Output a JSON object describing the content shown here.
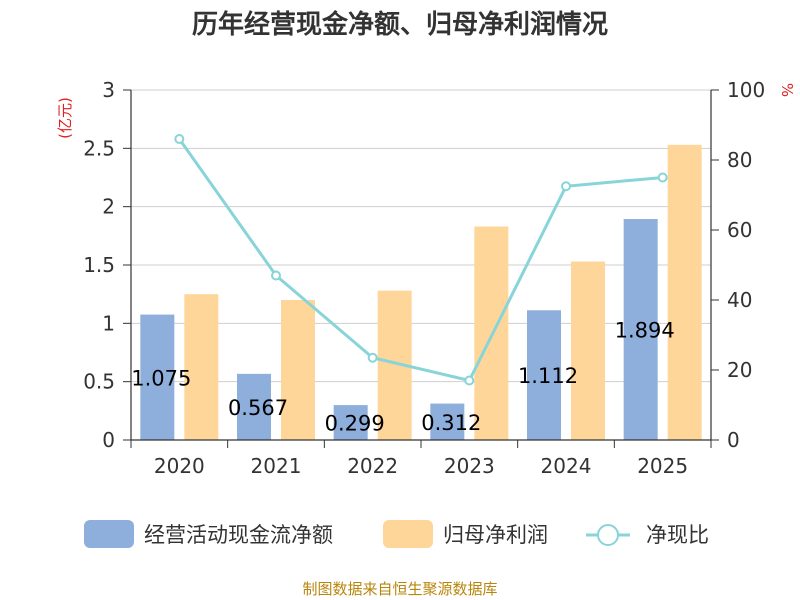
{
  "title": "历年经营现金净额、归母净利润情况",
  "source": "制图数据来自恒生聚源数据库",
  "chart_data": {
    "type": "bar",
    "categories": [
      "2020",
      "2021",
      "2022",
      "2023",
      "2024",
      "2025"
    ],
    "series": [
      {
        "name": "经营活动现金流净额",
        "kind": "bar",
        "axis": "left",
        "color": "#8eaedb",
        "values": [
          1.075,
          0.567,
          0.299,
          0.312,
          1.112,
          1.894
        ],
        "show_labels": true
      },
      {
        "name": "归母净利润",
        "kind": "bar",
        "axis": "left",
        "color": "#ffd699",
        "values": [
          1.25,
          1.2,
          1.28,
          1.83,
          1.53,
          2.53
        ],
        "show_labels": false
      },
      {
        "name": "净现比",
        "kind": "line",
        "axis": "right",
        "color": "#88d4d8",
        "values": [
          86,
          47,
          23.5,
          17,
          72.5,
          75
        ],
        "show_labels": false
      }
    ],
    "y_left": {
      "label": "(亿元)",
      "ticks": [
        "0",
        "0.5",
        "1",
        "1.5",
        "2",
        "2.5",
        "3"
      ],
      "range": [
        0,
        3
      ]
    },
    "y_right": {
      "label": "%",
      "ticks": [
        "0",
        "20",
        "40",
        "60",
        "80",
        "100"
      ],
      "range": [
        0,
        100
      ]
    },
    "grid": true,
    "legend_position": "bottom"
  }
}
